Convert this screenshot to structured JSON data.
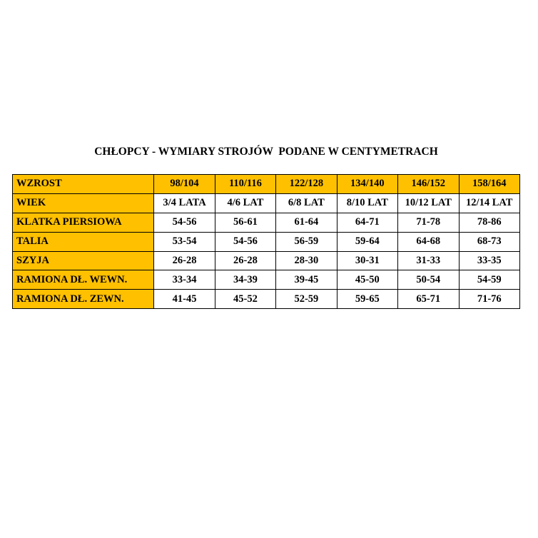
{
  "title": "CHŁOPCY - WYMIARY STROJÓW  PODANE W CENTYMETRACH",
  "accent_color": "#FFC000",
  "table": {
    "rows": [
      {
        "label": "WZROST",
        "values": [
          "98/104",
          "110/116",
          "122/128",
          "134/140",
          "146/152",
          "158/164"
        ]
      },
      {
        "label": "WIEK",
        "values": [
          "3/4 LATA",
          "4/6 LAT",
          "6/8 LAT",
          "8/10 LAT",
          "10/12 LAT",
          "12/14 LAT"
        ]
      },
      {
        "label": "KLATKA PIERSIOWA",
        "values": [
          "54-56",
          "56-61",
          "61-64",
          "64-71",
          "71-78",
          "78-86"
        ]
      },
      {
        "label": "TALIA",
        "values": [
          "53-54",
          "54-56",
          "56-59",
          "59-64",
          "64-68",
          "68-73"
        ]
      },
      {
        "label": "SZYJA",
        "values": [
          "26-28",
          "26-28",
          "28-30",
          "30-31",
          "31-33",
          "33-35"
        ]
      },
      {
        "label": "RAMIONA DŁ. WEWN.",
        "values": [
          "33-34",
          "34-39",
          "39-45",
          "45-50",
          "50-54",
          "54-59"
        ]
      },
      {
        "label": "RAMIONA DŁ. ZEWN.",
        "values": [
          "41-45",
          "45-52",
          "52-59",
          "59-65",
          "65-71",
          "71-76"
        ]
      }
    ]
  }
}
